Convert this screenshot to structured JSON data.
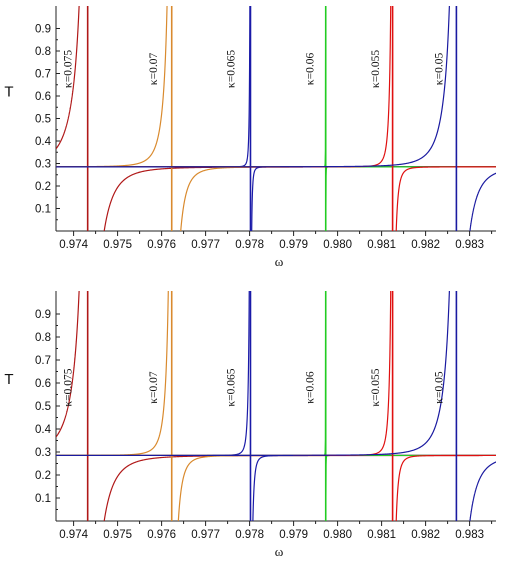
{
  "chart_data": [
    {
      "type": "line",
      "title": "",
      "xlabel": "ω",
      "ylabel": "T",
      "xlim": [
        0.9736,
        0.9836
      ],
      "ylim": [
        0.0,
        1.0
      ],
      "baseline": 0.285,
      "xticks": [
        "0.974",
        "0.975",
        "0.976",
        "0.977",
        "0.978",
        "0.979",
        "0.980",
        "0.981",
        "0.982",
        "0.983"
      ],
      "xtick_values": [
        0.974,
        0.975,
        0.976,
        0.977,
        0.978,
        0.979,
        0.98,
        0.981,
        0.982,
        0.983
      ],
      "yticks": [
        "0.1",
        "0.2",
        "0.3",
        "0.4",
        "0.5",
        "0.6",
        "0.7",
        "0.8",
        "0.9"
      ],
      "ytick_values": [
        0.1,
        0.2,
        0.3,
        0.4,
        0.5,
        0.6,
        0.7,
        0.8,
        0.9
      ],
      "series": [
        {
          "label": "κ=0.075",
          "color": "#b01818",
          "x0": 0.97432,
          "width": 0.00055,
          "label_x": 0.97395,
          "label_y": 0.72
        },
        {
          "label": "κ=0.07",
          "color": "#d98a2e",
          "x0": 0.97623,
          "width": 0.0003,
          "label_x": 0.9759,
          "label_y": 0.72
        },
        {
          "label": "κ=0.065",
          "color": "#1a1aa8",
          "x0": 0.97802,
          "width": 4e-05,
          "label_x": 0.97766,
          "label_y": 0.72
        },
        {
          "label": "κ=0.06",
          "color": "#22cc22",
          "x0": 0.97973,
          "width": 5e-06,
          "label_x": 0.97945,
          "label_y": 0.72
        },
        {
          "label": "κ=0.055",
          "color": "#e01010",
          "x0": 0.98125,
          "width": 0.00012,
          "label_x": 0.98094,
          "label_y": 0.72
        },
        {
          "label": "κ=0.05",
          "color": "#1a1aa0",
          "x0": 0.9827,
          "width": 0.00045,
          "label_x": 0.98238,
          "label_y": 0.72
        }
      ]
    },
    {
      "type": "line",
      "title": "",
      "xlabel": "ω",
      "ylabel": "T",
      "xlim": [
        0.9736,
        0.9836
      ],
      "ylim": [
        0.0,
        1.0
      ],
      "baseline": 0.285,
      "xticks": [
        "0.974",
        "0.975",
        "0.976",
        "0.977",
        "0.978",
        "0.979",
        "0.980",
        "0.981",
        "0.982",
        "0.983"
      ],
      "xtick_values": [
        0.974,
        0.975,
        0.976,
        0.977,
        0.978,
        0.979,
        0.98,
        0.981,
        0.982,
        0.983
      ],
      "yticks": [
        "0.1",
        "0.2",
        "0.3",
        "0.4",
        "0.5",
        "0.6",
        "0.7",
        "0.8",
        "0.9"
      ],
      "ytick_values": [
        0.1,
        0.2,
        0.3,
        0.4,
        0.5,
        0.6,
        0.7,
        0.8,
        0.9
      ],
      "series": [
        {
          "label": "κ=0.075",
          "color": "#b01818",
          "x0": 0.97432,
          "width": 0.00055,
          "label_x": 0.97395,
          "label_y": 0.58
        },
        {
          "label": "κ=0.07",
          "color": "#d98a2e",
          "x0": 0.97623,
          "width": 0.00022,
          "label_x": 0.9759,
          "label_y": 0.58
        },
        {
          "label": "κ=0.065",
          "color": "#1a1aa8",
          "x0": 0.97802,
          "width": 8e-05,
          "label_x": 0.97766,
          "label_y": 0.58
        },
        {
          "label": "κ=0.06",
          "color": "#22cc22",
          "x0": 0.97973,
          "width": 5e-06,
          "label_x": 0.97945,
          "label_y": 0.58
        },
        {
          "label": "κ=0.055",
          "color": "#e01010",
          "x0": 0.98125,
          "width": 0.00012,
          "label_x": 0.98094,
          "label_y": 0.58
        },
        {
          "label": "κ=0.05",
          "color": "#1a1aa0",
          "x0": 0.9827,
          "width": 0.00045,
          "label_x": 0.98238,
          "label_y": 0.58
        }
      ]
    }
  ]
}
